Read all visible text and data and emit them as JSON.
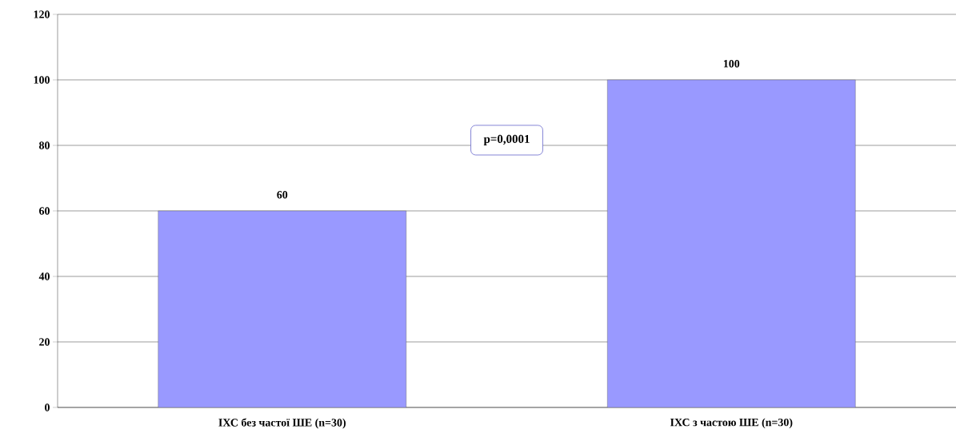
{
  "chart_data": {
    "type": "bar",
    "categories": [
      "ІХС без частої ШЕ (n=30)",
      "ІХС з частою ШЕ (n=30)"
    ],
    "values": [
      60,
      100
    ],
    "color": "#9999ff",
    "ylim": [
      0,
      120
    ],
    "yticks": [
      0,
      20,
      40,
      60,
      80,
      100,
      120
    ],
    "grid": "y",
    "data_labels": true,
    "annotations": [
      "p=0,0001"
    ]
  }
}
